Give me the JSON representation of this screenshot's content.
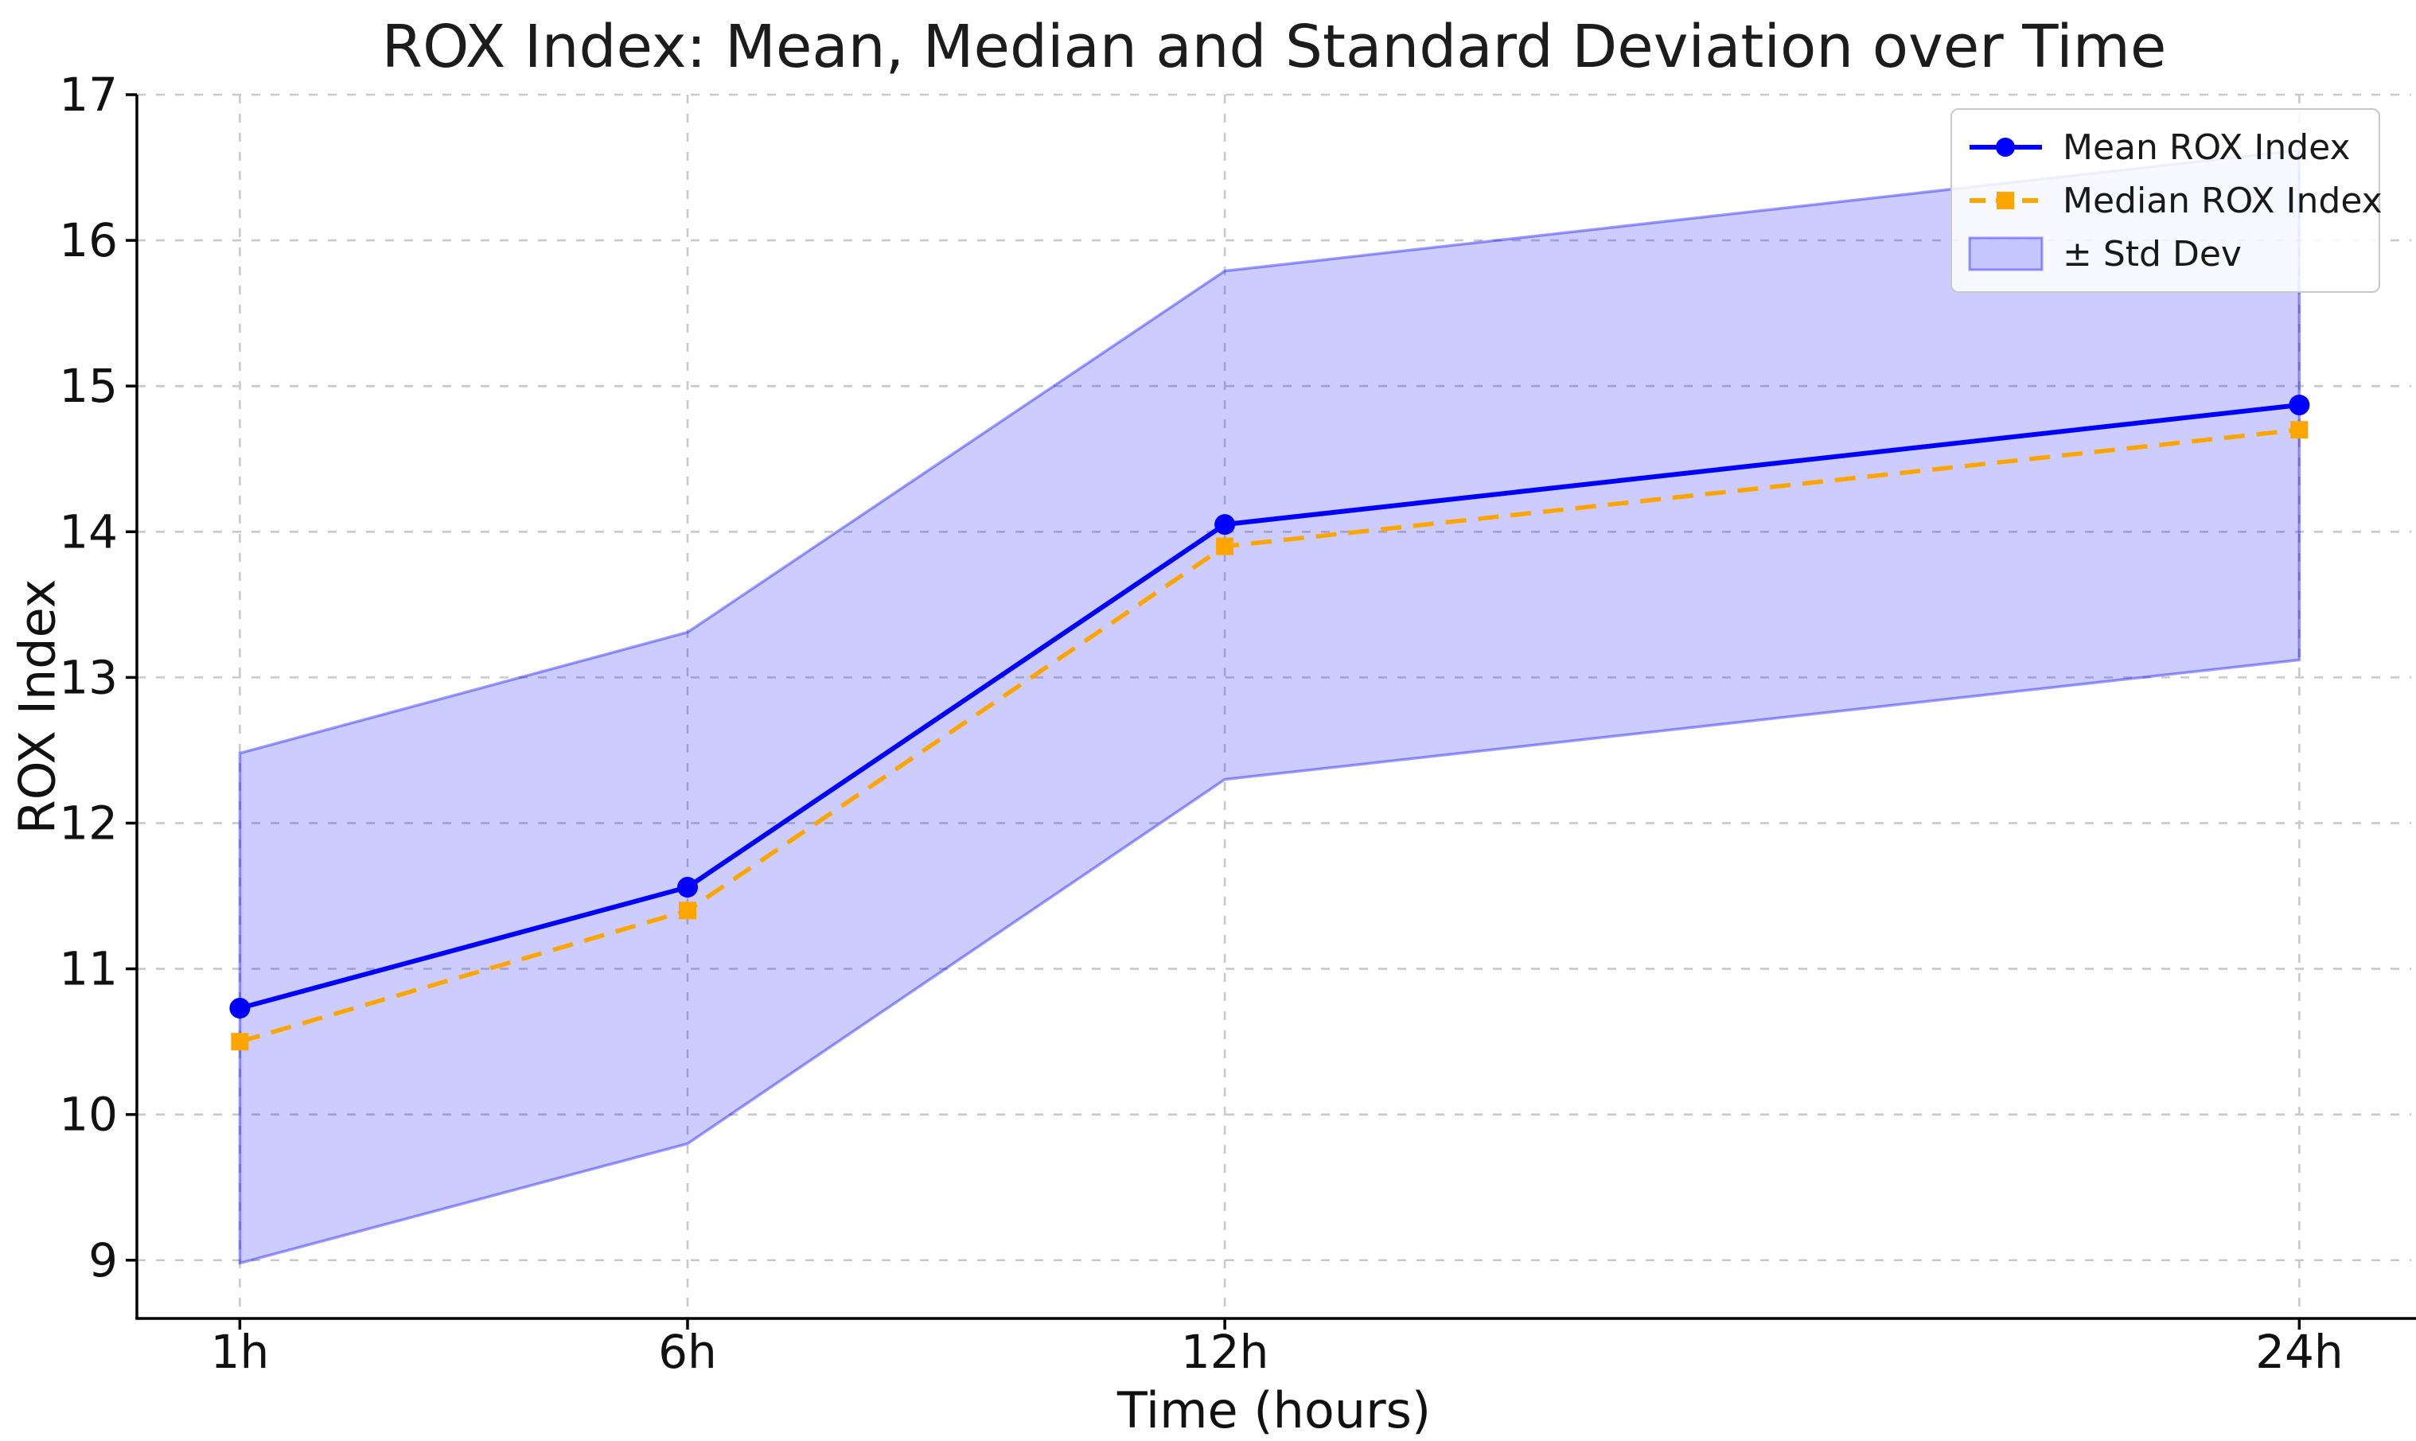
{
  "chart_data": {
    "type": "line",
    "title": "ROX Index: Mean, Median and Standard Deviation over Time",
    "xlabel": "Time (hours)",
    "ylabel": "ROX Index",
    "x": [
      1,
      6,
      12,
      24
    ],
    "x_tick_labels": [
      "1h",
      "6h",
      "12h",
      "24h"
    ],
    "y_ticks": [
      9,
      10,
      11,
      12,
      13,
      14,
      15,
      16,
      17
    ],
    "y_tick_labels": [
      "9",
      "10",
      "11",
      "12",
      "13",
      "14",
      "15",
      "16",
      "17"
    ],
    "xlim": [
      -0.15,
      25.25
    ],
    "ylim": [
      8.6,
      17.0
    ],
    "grid": true,
    "grid_style": "dashed",
    "legend_position": "upper right",
    "series": [
      {
        "name": "Mean ROX Index",
        "type": "line",
        "color": "#0000ff",
        "linestyle": "solid",
        "marker": "circle",
        "values": [
          10.73,
          11.56,
          14.05,
          14.87
        ]
      },
      {
        "name": "Median ROX Index",
        "type": "line",
        "color": "#ffa500",
        "linestyle": "dashed",
        "marker": "square",
        "values": [
          10.5,
          11.4,
          13.9,
          14.7
        ]
      },
      {
        "name": "± Std Dev",
        "type": "band",
        "color": "#0000ff",
        "fill_opacity": 0.2,
        "edge_opacity": 0.38,
        "upper": [
          12.48,
          13.31,
          15.79,
          16.62
        ],
        "lower": [
          8.98,
          9.8,
          12.3,
          13.12
        ]
      }
    ],
    "colors": {
      "mean_line": "#0000ff",
      "median_line": "#ffa500",
      "band_fill": "rgba(0,0,255,0.2)",
      "band_edge": "rgba(0,0,255,0.38)",
      "grid": "#c9c9c9",
      "spine": "#000000",
      "tick_text": "#111111"
    }
  }
}
